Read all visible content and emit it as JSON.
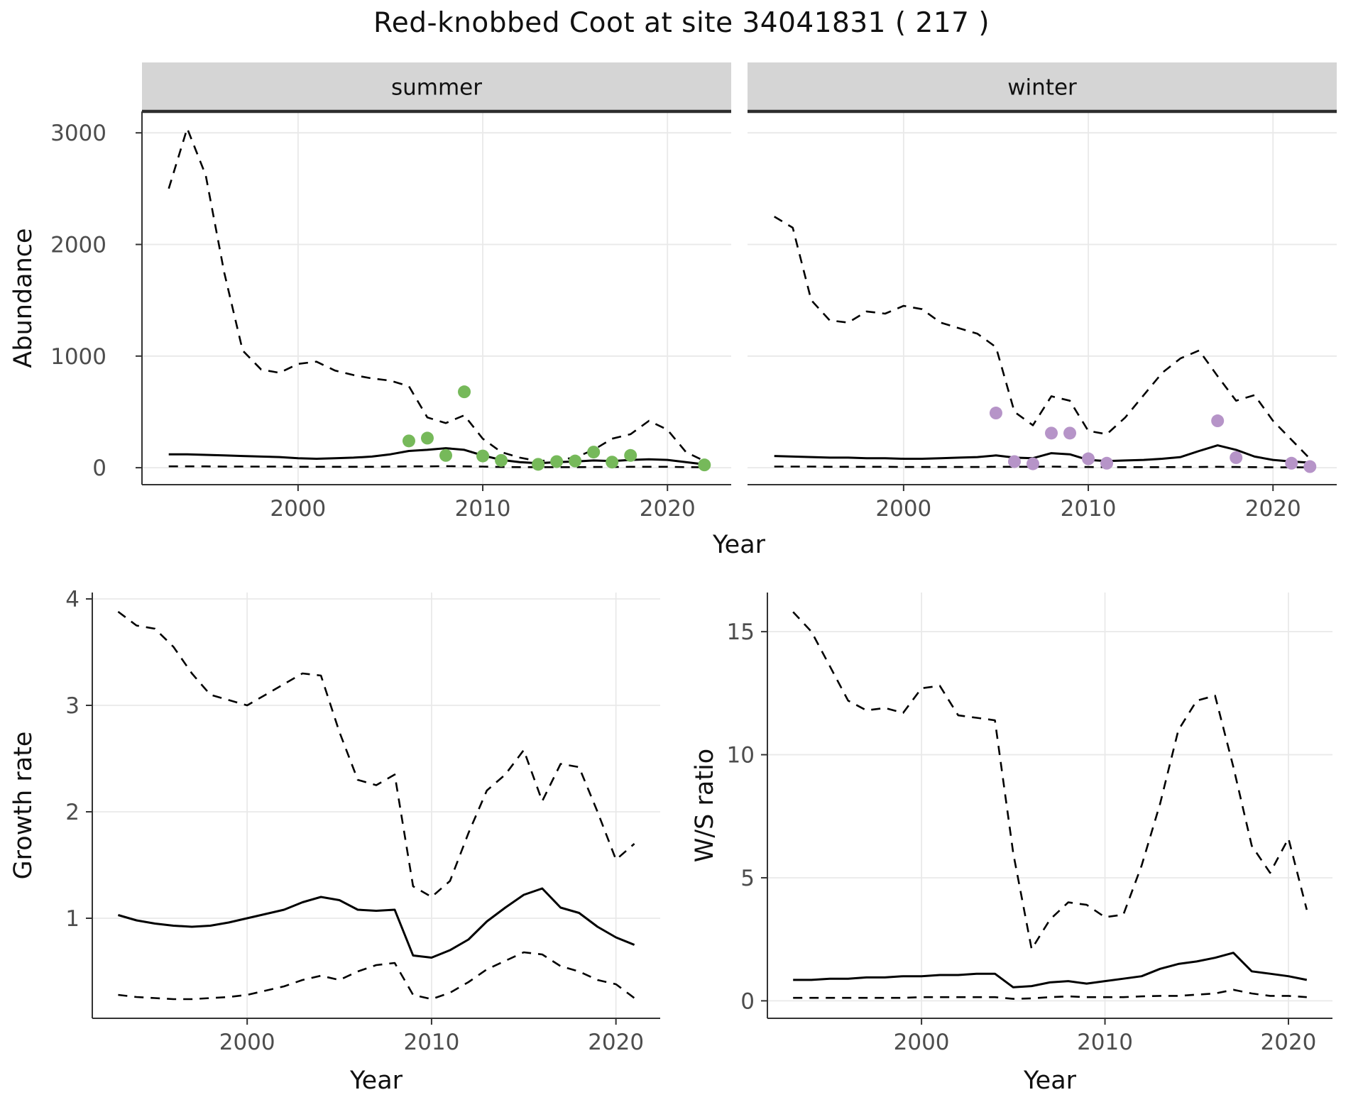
{
  "title": "Red-knobbed Coot at site 34041831 ( 217 )",
  "colors": {
    "summer_points": "#76b95a",
    "winter_points": "#b694c8",
    "line": "#000000",
    "strip_bg": "#d5d5d5",
    "strip_underline": "#2e2e2e",
    "grid": "#e9e9e9",
    "axis": "#333333",
    "tick_text": "#4d4d4d",
    "title_text": "#111111"
  },
  "chart_data": [
    {
      "id": "abundance-summer",
      "type": "line",
      "facet": "summer",
      "xlabel": "Year",
      "ylabel": "Abundance",
      "xlim": [
        1991.55,
        2023.45
      ],
      "ylim": [
        -152,
        3192
      ],
      "xticks": [
        2000,
        2010,
        2020
      ],
      "yticks": [
        0,
        1000,
        2000,
        3000
      ],
      "x": [
        1993,
        1994,
        1995,
        1996,
        1997,
        1998,
        1999,
        2000,
        2001,
        2002,
        2003,
        2004,
        2005,
        2006,
        2007,
        2008,
        2009,
        2010,
        2011,
        2012,
        2013,
        2014,
        2015,
        2016,
        2017,
        2018,
        2019,
        2020,
        2021,
        2022
      ],
      "series": [
        {
          "name": "upper-ci",
          "style": "dashed",
          "values": [
            2500,
            3040,
            2620,
            1750,
            1050,
            880,
            850,
            930,
            950,
            870,
            830,
            800,
            780,
            730,
            450,
            400,
            470,
            260,
            140,
            90,
            60,
            70,
            90,
            160,
            260,
            300,
            420,
            340,
            140,
            60
          ]
        },
        {
          "name": "mean",
          "style": "solid",
          "values": [
            120,
            120,
            115,
            110,
            105,
            100,
            95,
            85,
            80,
            85,
            90,
            100,
            120,
            150,
            160,
            175,
            160,
            110,
            70,
            50,
            40,
            50,
            55,
            65,
            60,
            70,
            75,
            70,
            50,
            30
          ]
        },
        {
          "name": "lower-ci",
          "style": "dashed",
          "values": [
            12,
            12,
            12,
            10,
            10,
            10,
            10,
            8,
            8,
            8,
            8,
            8,
            10,
            12,
            12,
            14,
            12,
            10,
            6,
            5,
            5,
            5,
            5,
            6,
            6,
            8,
            8,
            8,
            5,
            4
          ]
        },
        {
          "name": "observed-counts",
          "style": "points",
          "color": "#76b95a",
          "x": [
            2006,
            2007,
            2008,
            2009,
            2010,
            2011,
            2013,
            2014,
            2015,
            2016,
            2017,
            2018,
            2022
          ],
          "values": [
            240,
            265,
            110,
            680,
            105,
            65,
            30,
            55,
            60,
            140,
            50,
            110,
            25
          ]
        }
      ]
    },
    {
      "id": "abundance-winter",
      "type": "line",
      "facet": "winter",
      "xlabel": "Year",
      "ylabel": "Abundance",
      "xlim": [
        1991.55,
        2023.45
      ],
      "ylim": [
        -152,
        3192
      ],
      "xticks": [
        2000,
        2010,
        2020
      ],
      "yticks": [
        0,
        1000,
        2000,
        3000
      ],
      "x": [
        1993,
        1994,
        1995,
        1996,
        1997,
        1998,
        1999,
        2000,
        2001,
        2002,
        2003,
        2004,
        2005,
        2006,
        2007,
        2008,
        2009,
        2010,
        2011,
        2012,
        2013,
        2014,
        2015,
        2016,
        2017,
        2018,
        2019,
        2020,
        2021,
        2022
      ],
      "series": [
        {
          "name": "upper-ci",
          "style": "dashed",
          "values": [
            2250,
            2150,
            1500,
            1320,
            1300,
            1400,
            1380,
            1450,
            1420,
            1300,
            1250,
            1200,
            1080,
            500,
            380,
            640,
            600,
            330,
            300,
            450,
            650,
            850,
            980,
            1050,
            820,
            600,
            650,
            420,
            250,
            80
          ]
        },
        {
          "name": "mean",
          "style": "solid",
          "values": [
            105,
            100,
            95,
            90,
            90,
            85,
            85,
            80,
            80,
            85,
            90,
            95,
            110,
            90,
            85,
            130,
            120,
            70,
            60,
            65,
            70,
            80,
            95,
            150,
            200,
            160,
            100,
            70,
            55,
            45
          ]
        },
        {
          "name": "lower-ci",
          "style": "dashed",
          "values": [
            10,
            10,
            10,
            8,
            8,
            8,
            8,
            6,
            6,
            6,
            6,
            6,
            8,
            8,
            8,
            10,
            8,
            6,
            5,
            5,
            5,
            5,
            6,
            6,
            8,
            6,
            5,
            4,
            3,
            3
          ]
        },
        {
          "name": "observed-counts",
          "style": "points",
          "color": "#b694c8",
          "x": [
            2005,
            2006,
            2007,
            2008,
            2009,
            2010,
            2011,
            2017,
            2018,
            2021,
            2022
          ],
          "values": [
            490,
            55,
            35,
            310,
            310,
            80,
            40,
            420,
            90,
            40,
            10
          ]
        }
      ]
    },
    {
      "id": "growth-rate",
      "type": "line",
      "facet": null,
      "xlabel": "Year",
      "ylabel": "Growth rate",
      "xlim": [
        1991.6,
        2022.4
      ],
      "ylim": [
        0.06,
        4.06
      ],
      "xticks": [
        2000,
        2010,
        2020
      ],
      "yticks": [
        1,
        2,
        3,
        4
      ],
      "x": [
        1993,
        1994,
        1995,
        1996,
        1997,
        1998,
        1999,
        2000,
        2001,
        2002,
        2003,
        2004,
        2005,
        2006,
        2007,
        2008,
        2009,
        2010,
        2011,
        2012,
        2013,
        2014,
        2015,
        2016,
        2017,
        2018,
        2019,
        2020,
        2021
      ],
      "series": [
        {
          "name": "upper-ci",
          "style": "dashed",
          "values": [
            3.88,
            3.75,
            3.72,
            3.55,
            3.3,
            3.1,
            3.05,
            3.0,
            3.1,
            3.2,
            3.3,
            3.28,
            2.75,
            2.3,
            2.25,
            2.35,
            1.3,
            1.2,
            1.35,
            1.8,
            2.2,
            2.35,
            2.58,
            2.1,
            2.45,
            2.42,
            2.0,
            1.55,
            1.7
          ]
        },
        {
          "name": "mean",
          "style": "solid",
          "values": [
            1.03,
            0.98,
            0.95,
            0.93,
            0.92,
            0.93,
            0.96,
            1.0,
            1.04,
            1.08,
            1.15,
            1.2,
            1.17,
            1.08,
            1.07,
            1.08,
            0.65,
            0.63,
            0.7,
            0.8,
            0.97,
            1.1,
            1.22,
            1.28,
            1.1,
            1.05,
            0.92,
            0.82,
            0.75
          ]
        },
        {
          "name": "lower-ci",
          "style": "dashed",
          "values": [
            0.28,
            0.26,
            0.25,
            0.24,
            0.24,
            0.25,
            0.26,
            0.28,
            0.32,
            0.36,
            0.42,
            0.46,
            0.42,
            0.5,
            0.56,
            0.58,
            0.28,
            0.24,
            0.3,
            0.4,
            0.52,
            0.6,
            0.68,
            0.66,
            0.55,
            0.5,
            0.42,
            0.38,
            0.25
          ]
        }
      ]
    },
    {
      "id": "ws-ratio",
      "type": "line",
      "facet": null,
      "xlabel": "Year",
      "ylabel": "W/S ratio",
      "xlim": [
        1991.6,
        2022.4
      ],
      "ylim": [
        -0.71,
        16.59
      ],
      "xticks": [
        2000,
        2010,
        2020
      ],
      "yticks": [
        0,
        5,
        10,
        15
      ],
      "x": [
        1993,
        1994,
        1995,
        1996,
        1997,
        1998,
        1999,
        2000,
        2001,
        2002,
        2003,
        2004,
        2005,
        2006,
        2007,
        2008,
        2009,
        2010,
        2011,
        2012,
        2013,
        2014,
        2015,
        2016,
        2017,
        2018,
        2019,
        2020,
        2021
      ],
      "series": [
        {
          "name": "upper-ci",
          "style": "dashed",
          "values": [
            15.8,
            15.0,
            13.6,
            12.2,
            11.8,
            11.9,
            11.7,
            12.7,
            12.8,
            11.6,
            11.5,
            11.4,
            6.0,
            2.1,
            3.3,
            4.0,
            3.9,
            3.4,
            3.5,
            5.5,
            8.0,
            11.0,
            12.2,
            12.4,
            9.5,
            6.3,
            5.2,
            6.6,
            3.7
          ]
        },
        {
          "name": "mean",
          "style": "solid",
          "values": [
            0.85,
            0.85,
            0.9,
            0.9,
            0.95,
            0.95,
            1.0,
            1.0,
            1.05,
            1.05,
            1.1,
            1.1,
            0.55,
            0.6,
            0.75,
            0.8,
            0.7,
            0.8,
            0.9,
            1.0,
            1.3,
            1.5,
            1.6,
            1.75,
            1.95,
            1.2,
            1.1,
            1.0,
            0.85
          ]
        },
        {
          "name": "lower-ci",
          "style": "dashed",
          "values": [
            0.12,
            0.12,
            0.12,
            0.12,
            0.12,
            0.12,
            0.12,
            0.15,
            0.15,
            0.15,
            0.15,
            0.15,
            0.08,
            0.1,
            0.15,
            0.18,
            0.15,
            0.15,
            0.15,
            0.18,
            0.2,
            0.2,
            0.25,
            0.3,
            0.45,
            0.3,
            0.2,
            0.2,
            0.15
          ]
        }
      ]
    }
  ]
}
